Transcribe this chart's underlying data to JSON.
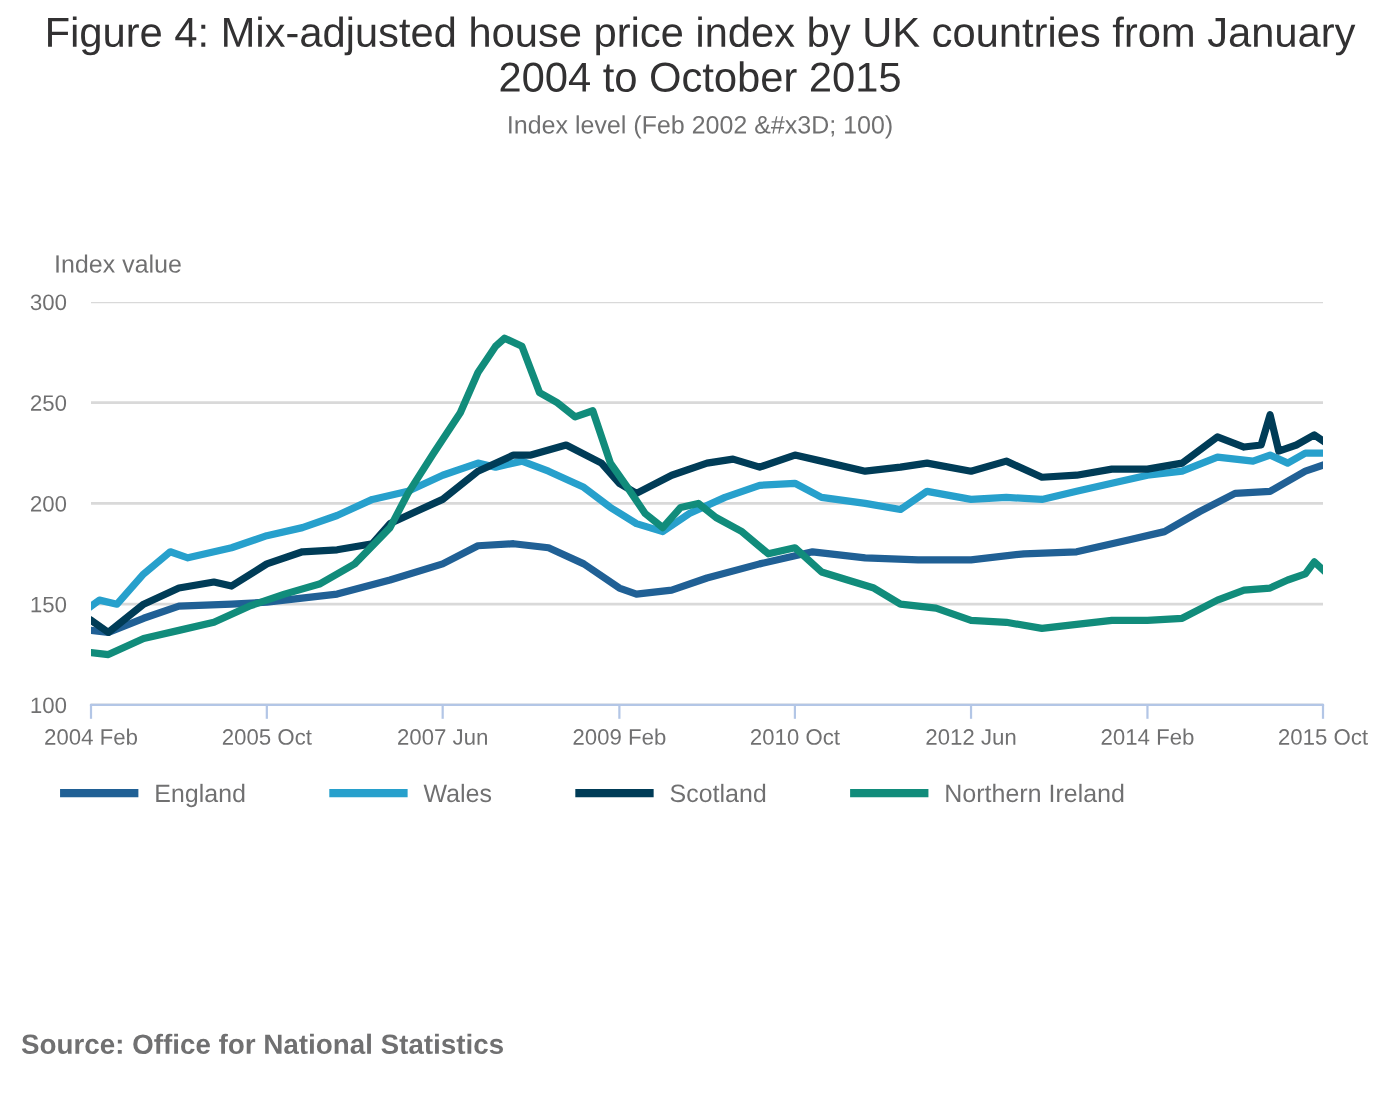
{
  "chart_data": {
    "type": "line",
    "title": "Figure 4: Mix-adjusted house price index by UK countries from January 2004 to October 2015",
    "subtitle": "Index level (Feb 2002 &#x3D; 100)",
    "ylabel": "Index value",
    "xlim": [
      "2004-02",
      "2015-10"
    ],
    "ylim": [
      100,
      300
    ],
    "yticks": [
      100,
      150,
      200,
      250,
      300
    ],
    "xticks": [
      {
        "value": "2004-02",
        "label": "2004 Feb"
      },
      {
        "value": "2005-10",
        "label": "2005 Oct"
      },
      {
        "value": "2007-06",
        "label": "2007 Jun"
      },
      {
        "value": "2009-02",
        "label": "2009 Feb"
      },
      {
        "value": "2010-10",
        "label": "2010 Oct"
      },
      {
        "value": "2012-06",
        "label": "2012 Jun"
      },
      {
        "value": "2014-02",
        "label": "2014 Feb"
      },
      {
        "value": "2015-10",
        "label": "2015 Oct"
      }
    ],
    "grid": "y",
    "legend": "bottom left",
    "marker": "none",
    "line_style": "solid",
    "annotations": [
      "Source: Office for National Statistics"
    ],
    "series": [
      {
        "name": "England",
        "color": "#206095",
        "x": [
          "2004-02",
          "2004-04",
          "2004-08",
          "2004-12",
          "2005-06",
          "2005-10",
          "2006-06",
          "2006-12",
          "2007-06",
          "2007-10",
          "2008-02",
          "2008-06",
          "2008-10",
          "2009-02",
          "2009-04",
          "2009-08",
          "2009-12",
          "2010-06",
          "2010-12",
          "2011-06",
          "2011-12",
          "2012-06",
          "2012-12",
          "2013-06",
          "2013-12",
          "2014-04",
          "2014-08",
          "2014-12",
          "2015-04",
          "2015-08",
          "2015-10"
        ],
        "values": [
          137,
          136,
          143,
          149,
          150,
          151,
          155,
          162,
          170,
          179,
          180,
          178,
          170,
          158,
          155,
          157,
          163,
          170,
          176,
          173,
          172,
          172,
          175,
          176,
          182,
          186,
          196,
          205,
          206,
          216,
          219
        ]
      },
      {
        "name": "Wales",
        "color": "#27a0cc",
        "x": [
          "2004-02",
          "2004-03",
          "2004-05",
          "2004-08",
          "2004-11",
          "2005-01",
          "2005-06",
          "2005-10",
          "2006-02",
          "2006-06",
          "2006-10",
          "2007-02",
          "2007-06",
          "2007-10",
          "2007-12",
          "2008-03",
          "2008-06",
          "2008-10",
          "2009-01",
          "2009-04",
          "2009-07",
          "2009-10",
          "2010-02",
          "2010-06",
          "2010-10",
          "2011-01",
          "2011-06",
          "2011-10",
          "2012-01",
          "2012-06",
          "2012-10",
          "2013-02",
          "2013-06",
          "2013-10",
          "2014-02",
          "2014-06",
          "2014-10",
          "2015-02",
          "2015-04",
          "2015-06",
          "2015-08",
          "2015-10"
        ],
        "values": [
          149,
          152,
          150,
          165,
          176,
          173,
          178,
          184,
          188,
          194,
          202,
          206,
          214,
          220,
          218,
          221,
          216,
          208,
          198,
          190,
          186,
          195,
          203,
          209,
          210,
          203,
          200,
          197,
          206,
          202,
          203,
          202,
          206,
          210,
          214,
          216,
          223,
          221,
          224,
          220,
          225,
          225
        ]
      },
      {
        "name": "Scotland",
        "color": "#003c57",
        "x": [
          "2004-02",
          "2004-04",
          "2004-08",
          "2004-12",
          "2005-04",
          "2005-06",
          "2005-10",
          "2006-02",
          "2006-06",
          "2006-10",
          "2006-12",
          "2007-03",
          "2007-06",
          "2007-10",
          "2008-02",
          "2008-04",
          "2008-08",
          "2008-12",
          "2009-02",
          "2009-04",
          "2009-08",
          "2009-12",
          "2010-03",
          "2010-06",
          "2010-10",
          "2011-01",
          "2011-06",
          "2011-10",
          "2012-01",
          "2012-06",
          "2012-10",
          "2013-02",
          "2013-06",
          "2013-10",
          "2014-02",
          "2014-06",
          "2014-10",
          "2015-01",
          "2015-03",
          "2015-04",
          "2015-05",
          "2015-07",
          "2015-09",
          "2015-10"
        ],
        "values": [
          142,
          136,
          150,
          158,
          161,
          159,
          170,
          176,
          177,
          180,
          190,
          196,
          202,
          216,
          224,
          224,
          229,
          220,
          210,
          205,
          214,
          220,
          222,
          218,
          224,
          221,
          216,
          218,
          220,
          216,
          221,
          213,
          214,
          217,
          217,
          220,
          233,
          228,
          229,
          244,
          226,
          229,
          234,
          231
        ]
      },
      {
        "name": "Northern Ireland",
        "color": "#118c7b",
        "x": [
          "2004-02",
          "2004-04",
          "2004-08",
          "2004-12",
          "2005-04",
          "2005-08",
          "2005-12",
          "2006-04",
          "2006-08",
          "2006-12",
          "2007-02",
          "2007-05",
          "2007-08",
          "2007-10",
          "2007-12",
          "2008-01",
          "2008-03",
          "2008-05",
          "2008-07",
          "2008-09",
          "2008-11",
          "2009-01",
          "2009-03",
          "2009-05",
          "2009-07",
          "2009-09",
          "2009-11",
          "2010-01",
          "2010-04",
          "2010-07",
          "2010-10",
          "2011-01",
          "2011-04",
          "2011-07",
          "2011-10",
          "2012-02",
          "2012-06",
          "2012-10",
          "2013-02",
          "2013-06",
          "2013-10",
          "2014-02",
          "2014-06",
          "2014-10",
          "2015-01",
          "2015-04",
          "2015-06",
          "2015-08",
          "2015-09",
          "2015-10"
        ],
        "values": [
          126,
          125,
          133,
          137,
          141,
          149,
          155,
          160,
          170,
          188,
          205,
          225,
          245,
          265,
          278,
          282,
          278,
          255,
          250,
          243,
          246,
          220,
          208,
          195,
          188,
          198,
          200,
          193,
          186,
          175,
          178,
          166,
          162,
          158,
          150,
          148,
          142,
          141,
          138,
          140,
          142,
          142,
          143,
          152,
          157,
          158,
          162,
          165,
          171,
          167
        ]
      }
    ]
  }
}
